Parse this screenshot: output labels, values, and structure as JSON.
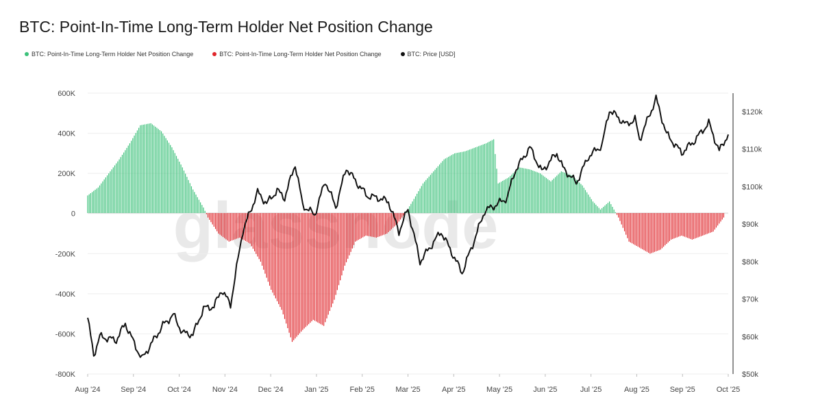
{
  "title": "BTC: Point-In-Time Long-Term Holder Net Position Change",
  "watermark": "glassnode",
  "legend": [
    {
      "label": "BTC: Point-In-Time Long-Term Holder Net Position Change",
      "color": "#3cc17a"
    },
    {
      "label": "BTC: Point-In-Time Long-Term Holder Net Position Change",
      "color": "#e0262b"
    },
    {
      "label": "BTC: Price [USD]",
      "color": "#111111"
    }
  ],
  "chart_data": {
    "type": "bar",
    "title": "BTC: Point-In-Time Long-Term Holder Net Position Change",
    "x_range": [
      "2024-08-01",
      "2025-10-01"
    ],
    "x_ticks": [
      "Aug '24",
      "Sep '24",
      "Oct '24",
      "Nov '24",
      "Dec '24",
      "Jan '25",
      "Feb '25",
      "Mar '25",
      "Apr '25",
      "May '25",
      "Jun '25",
      "Jul '25",
      "Aug '25",
      "Sep '25",
      "Oct '25"
    ],
    "y_left": {
      "ticks": [
        "600K",
        "400K",
        "200K",
        "0",
        "-200K",
        "-400K",
        "-600K",
        "-800K"
      ],
      "ylim": [
        -800000,
        600000
      ]
    },
    "y_right": {
      "ticks": [
        "$120k",
        "$110k",
        "$100k",
        "$90k",
        "$80k",
        "$70k",
        "$60k",
        "$50k"
      ],
      "ylim": [
        50000,
        125000
      ]
    },
    "grid": true,
    "legend_position": "top-left",
    "series": [
      {
        "name": "BTC: Point-In-Time Long-Term Holder Net Position Change",
        "type": "bar",
        "axis": "left",
        "positive_color": "#3cc17a",
        "negative_color": "#e0262b",
        "keyframes": [
          [
            "2024-08-01",
            90000
          ],
          [
            "2024-08-08",
            130000
          ],
          [
            "2024-08-15",
            200000
          ],
          [
            "2024-08-22",
            270000
          ],
          [
            "2024-08-29",
            350000
          ],
          [
            "2024-09-05",
            440000
          ],
          [
            "2024-09-12",
            450000
          ],
          [
            "2024-09-19",
            410000
          ],
          [
            "2024-09-26",
            330000
          ],
          [
            "2024-10-03",
            230000
          ],
          [
            "2024-10-10",
            120000
          ],
          [
            "2024-10-17",
            30000
          ],
          [
            "2024-10-20",
            -20000
          ],
          [
            "2024-10-27",
            -100000
          ],
          [
            "2024-11-03",
            -140000
          ],
          [
            "2024-11-10",
            -120000
          ],
          [
            "2024-11-17",
            -150000
          ],
          [
            "2024-11-24",
            -240000
          ],
          [
            "2024-12-01",
            -380000
          ],
          [
            "2024-12-08",
            -480000
          ],
          [
            "2024-12-15",
            -640000
          ],
          [
            "2024-12-22",
            -580000
          ],
          [
            "2024-12-29",
            -530000
          ],
          [
            "2025-01-05",
            -560000
          ],
          [
            "2025-01-12",
            -430000
          ],
          [
            "2025-01-19",
            -260000
          ],
          [
            "2025-01-26",
            -140000
          ],
          [
            "2025-02-02",
            -110000
          ],
          [
            "2025-02-09",
            -120000
          ],
          [
            "2025-02-16",
            -100000
          ],
          [
            "2025-02-23",
            -50000
          ],
          [
            "2025-02-28",
            0
          ],
          [
            "2025-03-05",
            60000
          ],
          [
            "2025-03-12",
            150000
          ],
          [
            "2025-03-19",
            210000
          ],
          [
            "2025-03-26",
            270000
          ],
          [
            "2025-04-02",
            300000
          ],
          [
            "2025-04-09",
            310000
          ],
          [
            "2025-04-16",
            330000
          ],
          [
            "2025-04-23",
            350000
          ],
          [
            "2025-04-28",
            370000
          ],
          [
            "2025-05-01",
            150000
          ],
          [
            "2025-05-08",
            180000
          ],
          [
            "2025-05-15",
            230000
          ],
          [
            "2025-05-22",
            220000
          ],
          [
            "2025-05-29",
            200000
          ],
          [
            "2025-06-05",
            160000
          ],
          [
            "2025-06-12",
            210000
          ],
          [
            "2025-06-19",
            190000
          ],
          [
            "2025-06-26",
            140000
          ],
          [
            "2025-07-03",
            60000
          ],
          [
            "2025-07-08",
            20000
          ],
          [
            "2025-07-14",
            60000
          ],
          [
            "2025-07-20",
            -20000
          ],
          [
            "2025-07-27",
            -140000
          ],
          [
            "2025-08-03",
            -170000
          ],
          [
            "2025-08-10",
            -200000
          ],
          [
            "2025-08-17",
            -180000
          ],
          [
            "2025-08-24",
            -130000
          ],
          [
            "2025-08-31",
            -110000
          ],
          [
            "2025-09-07",
            -130000
          ],
          [
            "2025-09-14",
            -110000
          ],
          [
            "2025-09-21",
            -90000
          ],
          [
            "2025-09-28",
            -20000
          ]
        ]
      },
      {
        "name": "BTC: Price [USD]",
        "type": "line",
        "axis": "right",
        "color": "#111111",
        "keyframes": [
          [
            "2024-08-01",
            65000
          ],
          [
            "2024-08-05",
            55000
          ],
          [
            "2024-08-09",
            60000
          ],
          [
            "2024-08-20",
            59000
          ],
          [
            "2024-08-26",
            63500
          ],
          [
            "2024-08-31",
            59000
          ],
          [
            "2024-09-06",
            54000
          ],
          [
            "2024-09-13",
            58500
          ],
          [
            "2024-09-20",
            63000
          ],
          [
            "2024-09-27",
            65800
          ],
          [
            "2024-10-03",
            61000
          ],
          [
            "2024-10-10",
            60500
          ],
          [
            "2024-10-17",
            67500
          ],
          [
            "2024-10-24",
            68000
          ],
          [
            "2024-10-29",
            72500
          ],
          [
            "2024-11-04",
            68500
          ],
          [
            "2024-11-12",
            88000
          ],
          [
            "2024-11-22",
            98500
          ],
          [
            "2024-11-28",
            95500
          ],
          [
            "2024-12-05",
            99000
          ],
          [
            "2024-12-10",
            97000
          ],
          [
            "2024-12-17",
            106000
          ],
          [
            "2024-12-22",
            95000
          ],
          [
            "2024-12-30",
            92500
          ],
          [
            "2025-01-06",
            101500
          ],
          [
            "2025-01-13",
            94500
          ],
          [
            "2025-01-20",
            105000
          ],
          [
            "2025-01-27",
            101000
          ],
          [
            "2025-02-03",
            97500
          ],
          [
            "2025-02-10",
            97000
          ],
          [
            "2025-02-17",
            96000
          ],
          [
            "2025-02-24",
            88000
          ],
          [
            "2025-03-02",
            94000
          ],
          [
            "2025-03-10",
            80000
          ],
          [
            "2025-03-17",
            84000
          ],
          [
            "2025-03-24",
            88000
          ],
          [
            "2025-03-31",
            82500
          ],
          [
            "2025-04-07",
            77000
          ],
          [
            "2025-04-14",
            84500
          ],
          [
            "2025-04-22",
            93500
          ],
          [
            "2025-04-29",
            95000
          ],
          [
            "2025-05-07",
            97000
          ],
          [
            "2025-05-12",
            104000
          ],
          [
            "2025-05-22",
            110500
          ],
          [
            "2025-05-30",
            104000
          ],
          [
            "2025-06-09",
            109000
          ],
          [
            "2025-06-13",
            105000
          ],
          [
            "2025-06-22",
            101000
          ],
          [
            "2025-06-30",
            108000
          ],
          [
            "2025-07-09",
            111000
          ],
          [
            "2025-07-14",
            120500
          ],
          [
            "2025-07-25",
            116500
          ],
          [
            "2025-07-31",
            118000
          ],
          [
            "2025-08-03",
            112500
          ],
          [
            "2025-08-14",
            123500
          ],
          [
            "2025-08-21",
            114000
          ],
          [
            "2025-08-31",
            109000
          ],
          [
            "2025-09-08",
            112000
          ],
          [
            "2025-09-18",
            117000
          ],
          [
            "2025-09-25",
            109500
          ],
          [
            "2025-10-01",
            114000
          ]
        ]
      }
    ]
  }
}
